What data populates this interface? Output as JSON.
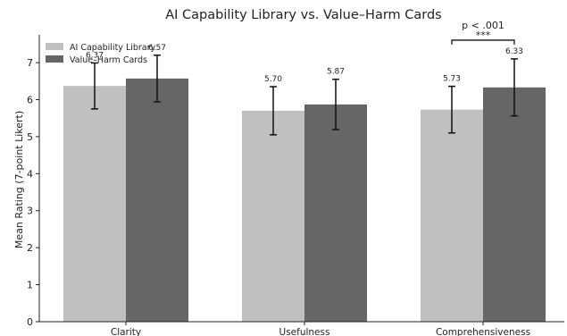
{
  "chart_data": {
    "type": "bar",
    "title": "AI Capability Library vs. Value–Harm Cards",
    "xlabel": "",
    "ylabel": "Mean Rating (7-point Likert)",
    "ylim": [
      0,
      7.75
    ],
    "yticks": [
      0,
      1,
      2,
      3,
      4,
      5,
      6,
      7
    ],
    "categories": [
      "Clarity",
      "Usefulness",
      "Comprehensiveness"
    ],
    "series": [
      {
        "name": "AI Capability Library",
        "color": "#c0c0c0",
        "values": [
          6.37,
          5.7,
          5.73
        ],
        "value_labels": [
          "6.37",
          "5.70",
          "5.73"
        ],
        "error": [
          0.62,
          0.65,
          0.63
        ]
      },
      {
        "name": "Value–Harm Cards",
        "color": "#666666",
        "values": [
          6.57,
          5.87,
          6.33
        ],
        "value_labels": [
          "6.57",
          "5.87",
          "6.33"
        ],
        "error": [
          0.63,
          0.68,
          0.77
        ]
      }
    ],
    "annotation": {
      "category": "Comprehensiveness",
      "text": "p < .001",
      "stars": "***"
    },
    "legend_position": "top-left",
    "grid": false
  }
}
